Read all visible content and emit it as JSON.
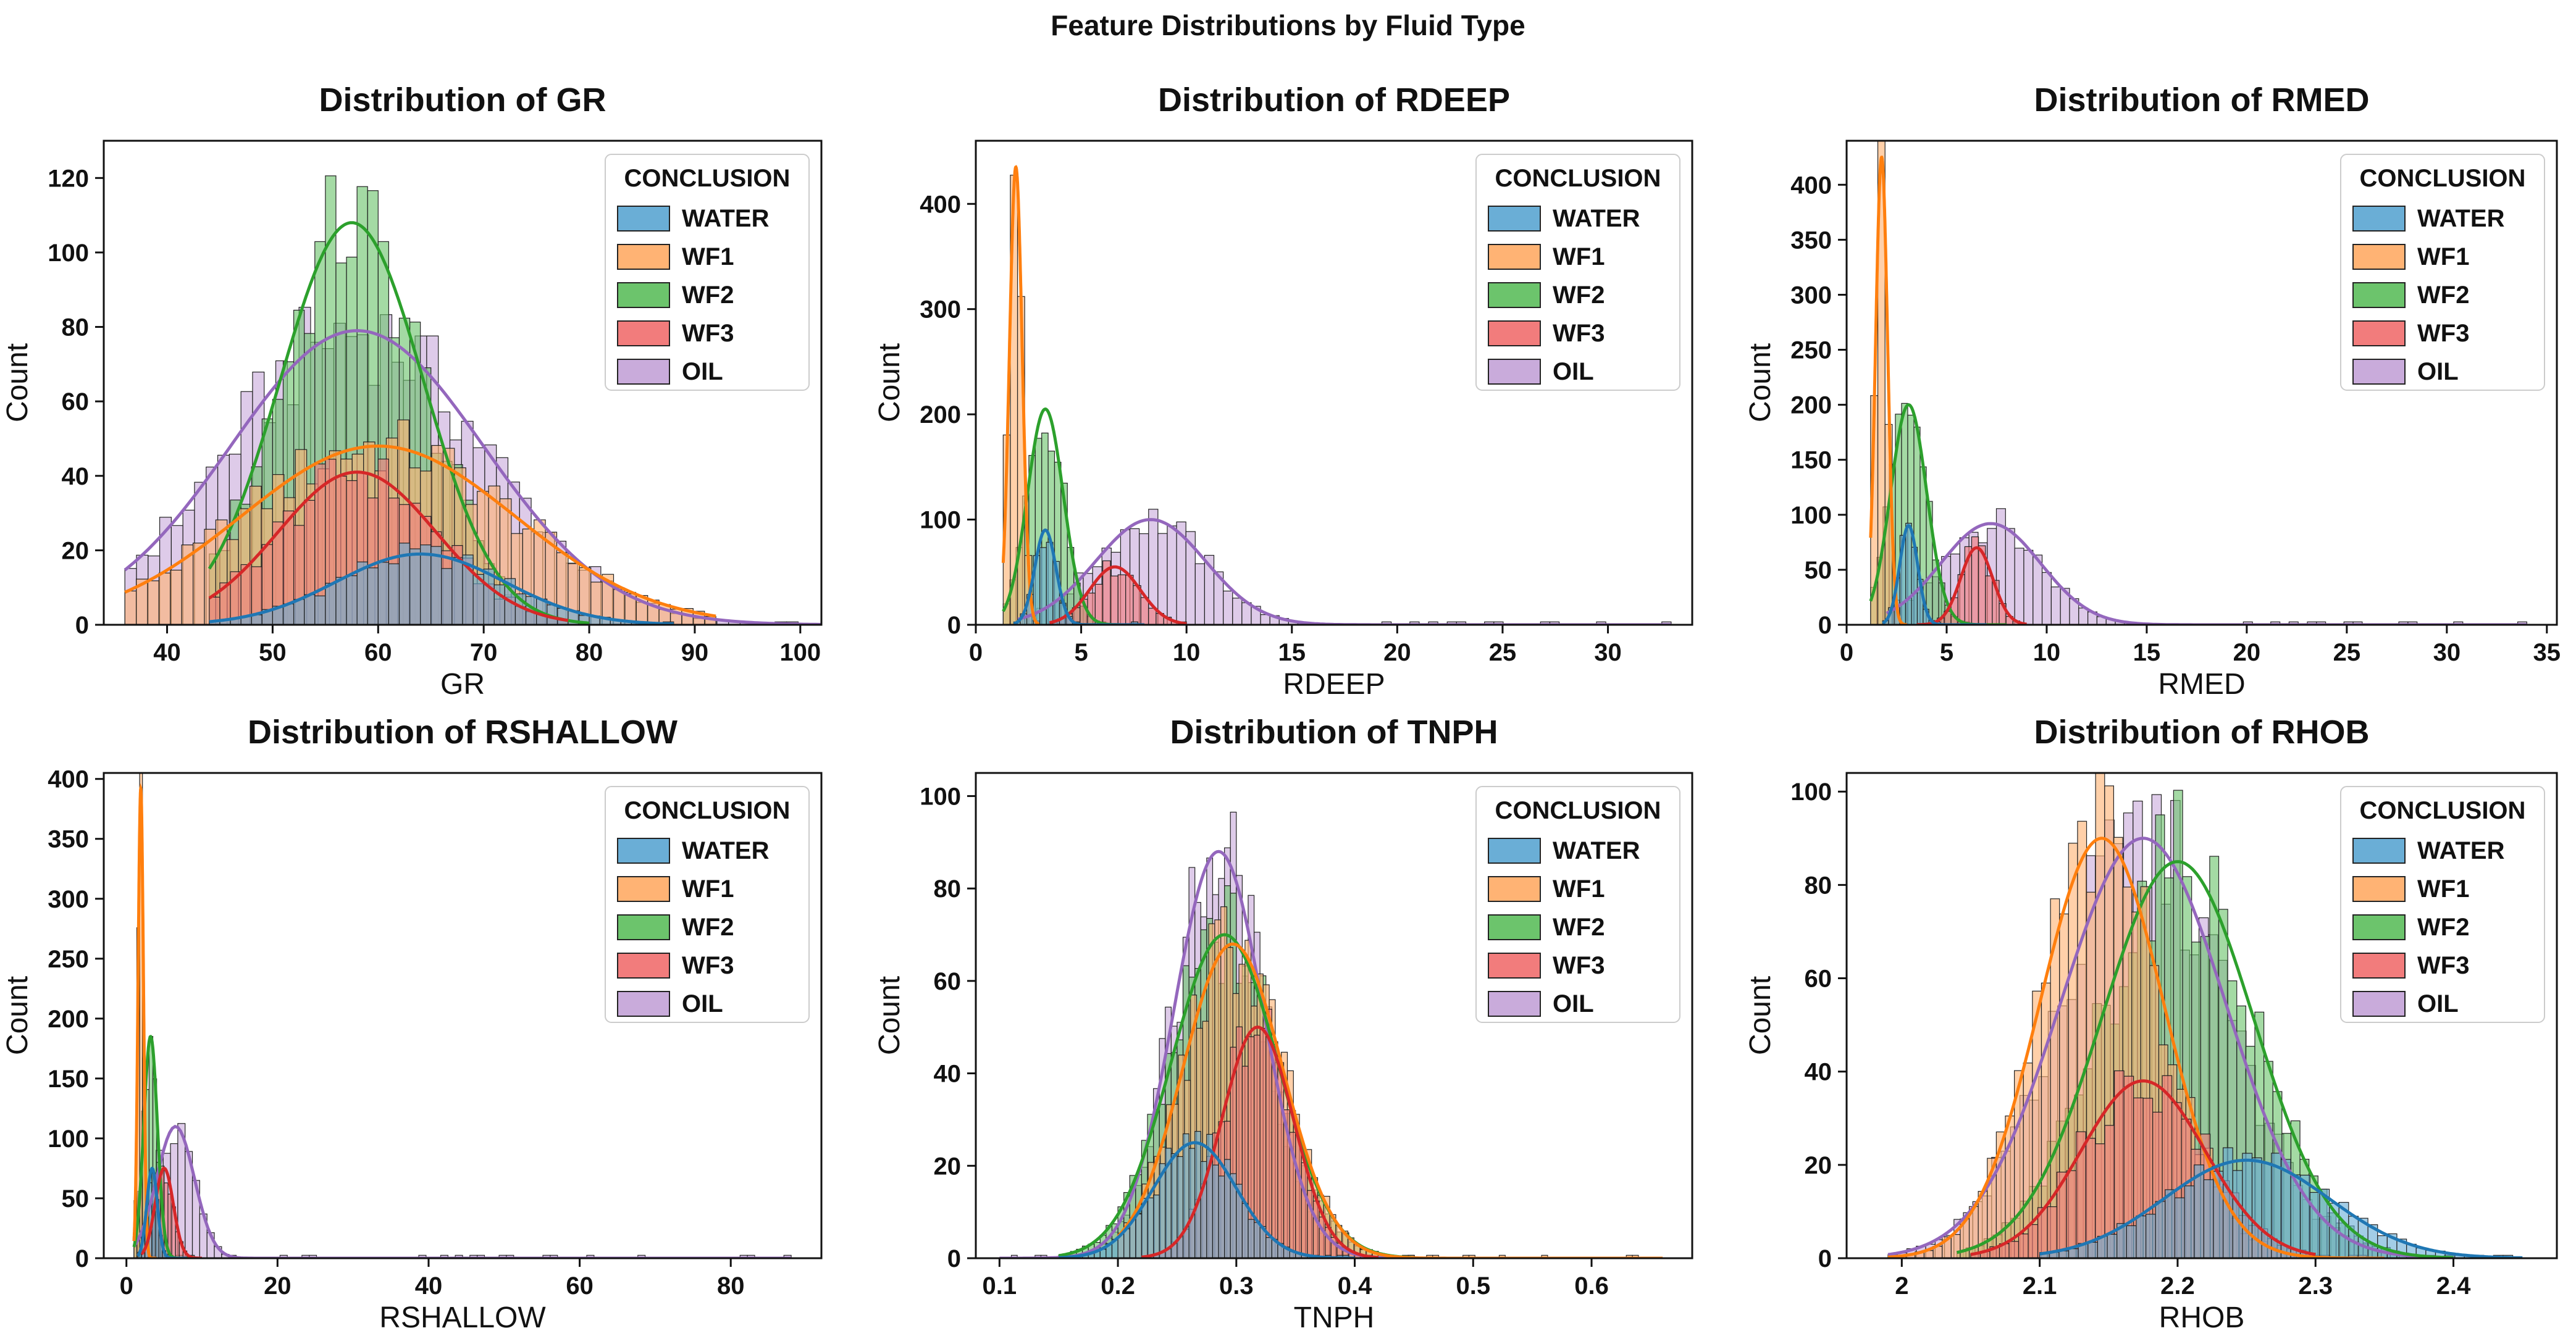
{
  "figure": {
    "title": "Feature Distributions by Fluid Type"
  },
  "legend": {
    "title": "CONCLUSION",
    "entries": [
      "WATER",
      "WF1",
      "WF2",
      "WF3",
      "OIL"
    ],
    "colors": [
      "#1f77b4",
      "#ff7f0e",
      "#2ca02c",
      "#d62728",
      "#9467bd"
    ],
    "fills": [
      "#6aaed6",
      "#ffb374",
      "#6cc46c",
      "#f27c7c",
      "#c9abdb"
    ]
  },
  "chart_data": [
    {
      "type": "histogram-kde",
      "title": "Distribution of GR",
      "xlabel": "GR",
      "ylabel": "Count",
      "xlim": [
        34,
        102
      ],
      "ylim": [
        0,
        130
      ],
      "xticks": [
        40,
        50,
        60,
        70,
        80,
        90,
        100
      ],
      "yticks": [
        0,
        20,
        40,
        60,
        80,
        100,
        120
      ],
      "series": [
        {
          "name": "OIL",
          "peak": 79,
          "mean": 58,
          "sd": 12,
          "x": [
            36,
            102
          ],
          "bins": 60
        },
        {
          "name": "WF1",
          "peak": 48,
          "mean": 60,
          "sd": 13,
          "x": [
            36,
            92
          ],
          "bins": 52
        },
        {
          "name": "WF2",
          "peak": 108,
          "mean": 57.5,
          "sd": 6.8,
          "x": [
            44,
            80
          ],
          "bins": 36
        },
        {
          "name": "WF3",
          "peak": 41,
          "mean": 58,
          "sd": 7.5,
          "x": [
            44,
            78
          ],
          "bins": 34
        },
        {
          "name": "WATER",
          "peak": 19,
          "mean": 64,
          "sd": 8,
          "x": [
            44,
            88
          ],
          "bins": 44
        }
      ]
    },
    {
      "type": "histogram-kde",
      "title": "Distribution of RDEEP",
      "xlabel": "RDEEP",
      "ylabel": "Count",
      "xlim": [
        0,
        34
      ],
      "ylim": [
        0,
        460
      ],
      "xticks": [
        0,
        5,
        10,
        15,
        20,
        25,
        30
      ],
      "yticks": [
        0,
        100,
        200,
        300,
        400
      ],
      "series": [
        {
          "name": "OIL",
          "peak": 100,
          "mean": 8.3,
          "sd": 2.6,
          "x": [
            2,
            33
          ],
          "bins": 70
        },
        {
          "name": "WF2",
          "peak": 205,
          "mean": 3.3,
          "sd": 0.85,
          "x": [
            1.3,
            8
          ],
          "bins": 22
        },
        {
          "name": "WF1",
          "peak": 435,
          "mean": 1.9,
          "sd": 0.3,
          "x": [
            1.3,
            3
          ],
          "bins": 5
        },
        {
          "name": "WF3",
          "peak": 55,
          "mean": 6.6,
          "sd": 1.2,
          "x": [
            3.5,
            10
          ],
          "bins": 18
        },
        {
          "name": "WATER",
          "peak": 90,
          "mean": 3.3,
          "sd": 0.5,
          "x": [
            1.8,
            8
          ],
          "bins": 20
        }
      ]
    },
    {
      "type": "histogram-kde",
      "title": "Distribution of RMED",
      "xlabel": "RMED",
      "ylabel": "Count",
      "xlim": [
        0,
        35.5
      ],
      "ylim": [
        0,
        440
      ],
      "xticks": [
        0,
        5,
        10,
        15,
        20,
        25,
        30,
        35
      ],
      "yticks": [
        0,
        50,
        100,
        150,
        200,
        250,
        300,
        350,
        400
      ],
      "series": [
        {
          "name": "OIL",
          "peak": 92,
          "mean": 7.2,
          "sd": 2.5,
          "x": [
            2,
            34
          ],
          "bins": 70
        },
        {
          "name": "WF2",
          "peak": 200,
          "mean": 3.1,
          "sd": 0.9,
          "x": [
            1.2,
            8
          ],
          "bins": 22
        },
        {
          "name": "WF1",
          "peak": 425,
          "mean": 1.75,
          "sd": 0.3,
          "x": [
            1.2,
            3
          ],
          "bins": 5
        },
        {
          "name": "WF3",
          "peak": 70,
          "mean": 6.5,
          "sd": 0.8,
          "x": [
            3.5,
            9
          ],
          "bins": 16
        },
        {
          "name": "WATER",
          "peak": 90,
          "mean": 3.1,
          "sd": 0.45,
          "x": [
            1.8,
            7
          ],
          "bins": 18
        }
      ]
    },
    {
      "type": "histogram-kde",
      "title": "Distribution of RSHALLOW",
      "xlabel": "RSHALLOW",
      "ylabel": "Count",
      "xlim": [
        -3,
        92
      ],
      "ylim": [
        0,
        405
      ],
      "xticks": [
        0,
        20,
        40,
        60,
        80
      ],
      "yticks": [
        0,
        50,
        100,
        150,
        200,
        250,
        300,
        350,
        400
      ],
      "series": [
        {
          "name": "OIL",
          "peak": 110,
          "mean": 6.5,
          "sd": 2.5,
          "x": [
            1,
            88
          ],
          "bins": 90
        },
        {
          "name": "WF2",
          "peak": 185,
          "mean": 3.2,
          "sd": 0.9,
          "x": [
            1,
            10
          ],
          "bins": 18
        },
        {
          "name": "WF1",
          "peak": 392,
          "mean": 1.9,
          "sd": 0.35,
          "x": [
            1,
            4
          ],
          "bins": 8
        },
        {
          "name": "WF3",
          "peak": 75,
          "mean": 5,
          "sd": 1.2,
          "x": [
            2,
            10
          ],
          "bins": 16
        },
        {
          "name": "WATER",
          "peak": 75,
          "mean": 3.4,
          "sd": 0.7,
          "x": [
            1.5,
            8
          ],
          "bins": 14
        }
      ]
    },
    {
      "type": "histogram-kde",
      "title": "Distribution of TNPH",
      "xlabel": "TNPH",
      "ylabel": "Count",
      "xlim": [
        0.08,
        0.685
      ],
      "ylim": [
        0,
        105
      ],
      "xticks": [
        0.1,
        0.2,
        0.3,
        0.4,
        0.5,
        0.6
      ],
      "yticks": [
        0,
        20,
        40,
        60,
        80,
        100
      ],
      "series": [
        {
          "name": "OIL",
          "peak": 88,
          "mean": 0.285,
          "sd": 0.038,
          "x": [
            0.1,
            0.45
          ],
          "bins": 70
        },
        {
          "name": "WF2",
          "peak": 70,
          "mean": 0.29,
          "sd": 0.045,
          "x": [
            0.15,
            0.45
          ],
          "bins": 60
        },
        {
          "name": "WF1",
          "peak": 68,
          "mean": 0.297,
          "sd": 0.042,
          "x": [
            0.2,
            0.66
          ],
          "bins": 90
        },
        {
          "name": "WF3",
          "peak": 50,
          "mean": 0.318,
          "sd": 0.03,
          "x": [
            0.22,
            0.42
          ],
          "bins": 40
        },
        {
          "name": "WATER",
          "peak": 25,
          "mean": 0.265,
          "sd": 0.035,
          "x": [
            0.15,
            0.4
          ],
          "bins": 50
        }
      ]
    },
    {
      "type": "histogram-kde",
      "title": "Distribution of RHOB",
      "xlabel": "RHOB",
      "ylabel": "Count",
      "xlim": [
        1.96,
        2.475
      ],
      "ylim": [
        0,
        104
      ],
      "xticks": [
        2.0,
        2.1,
        2.2,
        2.3,
        2.4
      ],
      "yticks": [
        0,
        20,
        40,
        60,
        80,
        100
      ],
      "series": [
        {
          "name": "OIL",
          "peak": 90,
          "mean": 2.175,
          "sd": 0.06,
          "x": [
            1.99,
            2.4
          ],
          "bins": 60
        },
        {
          "name": "WF2",
          "peak": 85,
          "mean": 2.2,
          "sd": 0.055,
          "x": [
            2.04,
            2.4
          ],
          "bins": 55
        },
        {
          "name": "WF1",
          "peak": 90,
          "mean": 2.145,
          "sd": 0.045,
          "x": [
            1.99,
            2.35
          ],
          "bins": 55
        },
        {
          "name": "WF3",
          "peak": 38,
          "mean": 2.175,
          "sd": 0.045,
          "x": [
            2.05,
            2.3
          ],
          "bins": 36
        },
        {
          "name": "WATER",
          "peak": 21,
          "mean": 2.25,
          "sd": 0.06,
          "x": [
            2.1,
            2.45
          ],
          "bins": 50
        }
      ]
    }
  ]
}
